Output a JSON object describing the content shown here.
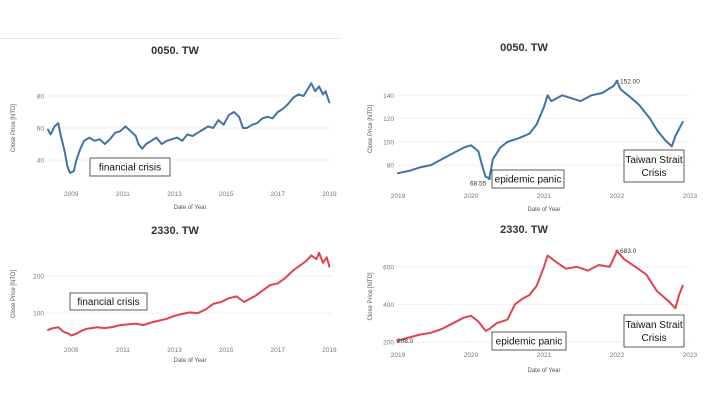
{
  "colors": {
    "blue": "#4272a6",
    "red": "#e0434e",
    "grid": "#eeeeee"
  },
  "chart_data": [
    {
      "type": "line",
      "title": "0050. TW",
      "xlabel": "Date of Year",
      "ylabel": "Close Price [NTD]",
      "xlim": [
        2008.1,
        2019.1
      ],
      "ylim": [
        25,
        95
      ],
      "xticks": [
        2009,
        2011,
        2013,
        2015,
        2017,
        2019
      ],
      "yticks": [
        40,
        60,
        80
      ],
      "series": [
        {
          "color": "#4272a6",
          "x": [
            2008.1,
            2008.2,
            2008.35,
            2008.5,
            2008.6,
            2008.75,
            2008.85,
            2008.95,
            2009.1,
            2009.2,
            2009.35,
            2009.5,
            2009.7,
            2009.9,
            2010.1,
            2010.3,
            2010.5,
            2010.7,
            2010.9,
            2011.1,
            2011.3,
            2011.5,
            2011.6,
            2011.75,
            2011.9,
            2012.1,
            2012.3,
            2012.5,
            2012.7,
            2012.9,
            2013.1,
            2013.3,
            2013.5,
            2013.7,
            2013.9,
            2014.1,
            2014.3,
            2014.5,
            2014.7,
            2014.9,
            2015.1,
            2015.3,
            2015.5,
            2015.65,
            2015.8,
            2016.0,
            2016.2,
            2016.4,
            2016.6,
            2016.8,
            2017.0,
            2017.2,
            2017.4,
            2017.6,
            2017.8,
            2018.0,
            2018.15,
            2018.3,
            2018.45,
            2018.6,
            2018.75,
            2018.85,
            2019.0
          ],
          "values": [
            59,
            56,
            61,
            63,
            55,
            45,
            36,
            32,
            33,
            40,
            47,
            52,
            54,
            52,
            53,
            50,
            53,
            57,
            58,
            61,
            58,
            55,
            50,
            47,
            50,
            52,
            54,
            50,
            52,
            53,
            54,
            52,
            56,
            55,
            57,
            59,
            61,
            60,
            65,
            62,
            68,
            70,
            67,
            60,
            60,
            62,
            63,
            66,
            67,
            66,
            70,
            72,
            75,
            79,
            81,
            80,
            84,
            88,
            83,
            86,
            81,
            83,
            76
          ]
        }
      ],
      "annotations": [
        {
          "text": "financial crisis"
        }
      ]
    },
    {
      "type": "line",
      "title": "0050. TW",
      "xlabel": "Date of Year",
      "ylabel": "Close Price [NTD]",
      "xlim": [
        2019.0,
        2023.0
      ],
      "ylim": [
        62,
        160
      ],
      "xticks": [
        2019,
        2020,
        2021,
        2022,
        2023
      ],
      "yticks": [
        80,
        100,
        120,
        140
      ],
      "series": [
        {
          "color": "#4272a6",
          "x": [
            2019.0,
            2019.15,
            2019.3,
            2019.45,
            2019.6,
            2019.75,
            2019.9,
            2020.0,
            2020.1,
            2020.15,
            2020.2,
            2020.25,
            2020.3,
            2020.4,
            2020.5,
            2020.65,
            2020.8,
            2020.9,
            2021.0,
            2021.05,
            2021.1,
            2021.25,
            2021.4,
            2021.5,
            2021.65,
            2021.8,
            2021.95,
            2022.0,
            2022.05,
            2022.15,
            2022.3,
            2022.45,
            2022.55,
            2022.65,
            2022.75,
            2022.8,
            2022.9
          ],
          "values": [
            73,
            75,
            78,
            80,
            85,
            90,
            95,
            97,
            92,
            80,
            70,
            68.55,
            85,
            95,
            100,
            103,
            107,
            115,
            130,
            140,
            135,
            140,
            137,
            135,
            140,
            142,
            148,
            152,
            145,
            140,
            132,
            120,
            110,
            102,
            96,
            105,
            117
          ]
        }
      ],
      "annotations": [
        {
          "text": "epidemic panic"
        },
        {
          "text": "Taiwan Strait",
          "text2": "Crisis"
        }
      ],
      "labels": [
        {
          "x": 2022.0,
          "y": 152,
          "text": "152.00"
        },
        {
          "x": 2020.25,
          "y": 68.55,
          "text": "68.55"
        }
      ]
    },
    {
      "type": "line",
      "title": "2330. TW",
      "xlabel": "Date of Year",
      "ylabel": "Close Price [NTD]",
      "xlim": [
        2008.1,
        2019.1
      ],
      "ylim": [
        28,
        275
      ],
      "xticks": [
        2009,
        2011,
        2013,
        2015,
        2017,
        2019
      ],
      "yticks": [
        100,
        200
      ],
      "series": [
        {
          "color": "#e0434e",
          "x": [
            2008.1,
            2008.3,
            2008.5,
            2008.7,
            2008.9,
            2009.0,
            2009.2,
            2009.4,
            2009.6,
            2009.8,
            2010.0,
            2010.3,
            2010.6,
            2010.9,
            2011.2,
            2011.5,
            2011.8,
            2012.1,
            2012.4,
            2012.7,
            2013.0,
            2013.3,
            2013.6,
            2013.9,
            2014.2,
            2014.5,
            2014.8,
            2015.1,
            2015.4,
            2015.7,
            2015.9,
            2016.1,
            2016.4,
            2016.7,
            2017.0,
            2017.3,
            2017.6,
            2017.9,
            2018.1,
            2018.3,
            2018.5,
            2018.6,
            2018.75,
            2018.9,
            2019.0
          ],
          "values": [
            55,
            60,
            62,
            50,
            45,
            40,
            45,
            53,
            58,
            60,
            62,
            60,
            63,
            68,
            70,
            72,
            68,
            75,
            80,
            85,
            93,
            98,
            102,
            100,
            110,
            125,
            130,
            140,
            145,
            130,
            138,
            145,
            160,
            175,
            180,
            195,
            215,
            230,
            240,
            255,
            245,
            262,
            235,
            250,
            225
          ]
        }
      ],
      "annotations": [
        {
          "text": "financial crisis"
        }
      ]
    },
    {
      "type": "line",
      "title": "2330. TW",
      "xlabel": "Date of Year",
      "ylabel": "Close Price [NTD]",
      "xlim": [
        2019.0,
        2023.0
      ],
      "ylim": [
        185,
        700
      ],
      "xticks": [
        2019,
        2020,
        2021,
        2022,
        2023
      ],
      "yticks": [
        200,
        400,
        600
      ],
      "series": [
        {
          "color": "#e0434e",
          "x": [
            2019.0,
            2019.15,
            2019.3,
            2019.45,
            2019.6,
            2019.75,
            2019.9,
            2020.0,
            2020.1,
            2020.2,
            2020.25,
            2020.35,
            2020.5,
            2020.6,
            2020.7,
            2020.8,
            2020.9,
            2021.0,
            2021.05,
            2021.15,
            2021.3,
            2021.45,
            2021.6,
            2021.75,
            2021.9,
            2022.0,
            2022.1,
            2022.25,
            2022.4,
            2022.55,
            2022.7,
            2022.8,
            2022.85,
            2022.9
          ],
          "values": [
            208,
            225,
            240,
            250,
            270,
            300,
            330,
            340,
            310,
            260,
            270,
            300,
            320,
            400,
            430,
            450,
            500,
            600,
            660,
            630,
            590,
            600,
            580,
            610,
            600,
            683,
            640,
            600,
            560,
            470,
            420,
            380,
            450,
            500
          ]
        }
      ],
      "annotations": [
        {
          "text": "epidemic panic"
        },
        {
          "text": "Taiwan Strait",
          "text2": "Crisis"
        }
      ],
      "labels": [
        {
          "x": 2022.0,
          "y": 683,
          "text": "683.0"
        },
        {
          "x": 2019.0,
          "y": 208,
          "text": "208.0"
        }
      ]
    }
  ]
}
